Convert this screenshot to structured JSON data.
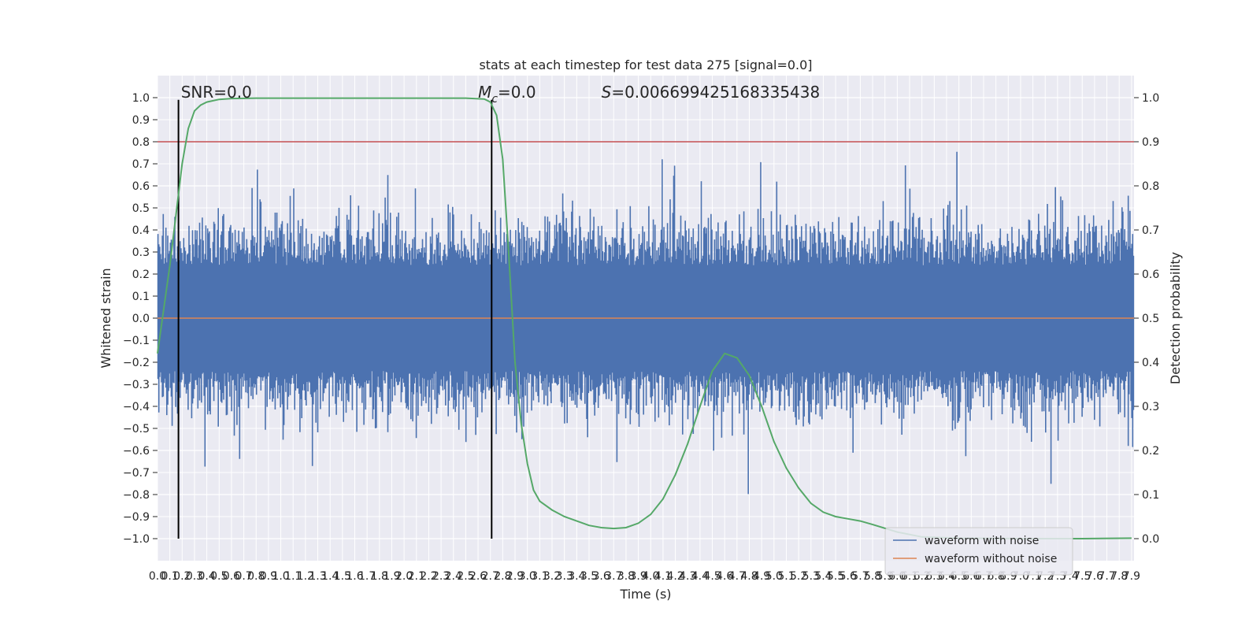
{
  "chart_data": {
    "type": "line",
    "title": "stats at each timestep for test data 275 [signal=0.0]",
    "xlabel": "Time (s)",
    "ylabel": "Whitened strain",
    "y2label": "Detection probability",
    "xlim": [
      0.0,
      7.92
    ],
    "ylim": [
      -1.1,
      1.1
    ],
    "y2lim": [
      -0.05,
      1.05
    ],
    "grid": true,
    "x_ticks": [
      "0.0",
      "0.1",
      "0.2",
      "0.3",
      "0.4",
      "0.5",
      "0.6",
      "0.7",
      "0.8",
      "0.9",
      "1.0",
      "1.1",
      "1.2",
      "1.3",
      "1.4",
      "1.5",
      "1.6",
      "1.7",
      "1.8",
      "1.9",
      "2.0",
      "2.1",
      "2.2",
      "2.3",
      "2.4",
      "2.5",
      "2.6",
      "2.7",
      "2.8",
      "2.9",
      "3.0",
      "3.1",
      "3.2",
      "3.3",
      "3.4",
      "3.5",
      "3.6",
      "3.7",
      "3.8",
      "3.9",
      "4.0",
      "4.1",
      "4.2",
      "4.3",
      "4.4",
      "4.5",
      "4.6",
      "4.7",
      "4.8",
      "4.9",
      "5.0",
      "5.1",
      "5.2",
      "5.3",
      "5.4",
      "5.5",
      "5.6",
      "5.7",
      "5.8",
      "5.9",
      "6.0",
      "6.1",
      "6.2",
      "6.3",
      "6.4",
      "6.5",
      "6.6",
      "6.7",
      "6.8",
      "6.9",
      "7.0",
      "7.1",
      "7.2",
      "7.3",
      "7.4",
      "7.5",
      "7.6",
      "7.7",
      "7.8",
      "7.9"
    ],
    "y_ticks": [
      "1.0",
      "0.9",
      "0.8",
      "0.7",
      "0.6",
      "0.5",
      "0.4",
      "0.3",
      "0.2",
      "0.1",
      "0.0",
      "−0.1",
      "−0.2",
      "−0.3",
      "−0.4",
      "−0.5",
      "−0.6",
      "−0.7",
      "−0.8",
      "−0.9",
      "−1.0"
    ],
    "y2_ticks": [
      "1.0",
      "0.9",
      "0.8",
      "0.7",
      "0.6",
      "0.5",
      "0.4",
      "0.3",
      "0.2",
      "0.1",
      "0.0"
    ],
    "series": [
      {
        "name": "waveform with noise",
        "color": "#4c72b0",
        "kind": "noise",
        "amplitude_typical": 0.5,
        "amplitude_peak": 0.99
      },
      {
        "name": "waveform without noise",
        "color": "#dd8452",
        "values_constant": 0.0
      },
      {
        "name": "",
        "color": "#55a868",
        "axis": "y2",
        "x": [
          0.0,
          0.1,
          0.2,
          0.25,
          0.3,
          0.35,
          0.4,
          0.5,
          0.6,
          0.8,
          1.0,
          1.5,
          2.0,
          2.5,
          2.65,
          2.7,
          2.75,
          2.8,
          2.85,
          2.9,
          2.95,
          3.0,
          3.05,
          3.1,
          3.2,
          3.3,
          3.5,
          3.6,
          3.7,
          3.8,
          3.9,
          4.0,
          4.1,
          4.2,
          4.3,
          4.4,
          4.5,
          4.6,
          4.7,
          4.8,
          4.9,
          5.0,
          5.1,
          5.2,
          5.3,
          5.4,
          5.5,
          5.6,
          5.7,
          5.8,
          6.0,
          6.2,
          6.5,
          7.0,
          7.5,
          7.9
        ],
        "values": [
          0.42,
          0.62,
          0.85,
          0.93,
          0.97,
          0.983,
          0.99,
          0.996,
          0.998,
          0.999,
          0.999,
          0.999,
          0.999,
          0.999,
          0.997,
          0.99,
          0.96,
          0.86,
          0.64,
          0.4,
          0.26,
          0.17,
          0.11,
          0.085,
          0.065,
          0.05,
          0.03,
          0.025,
          0.023,
          0.025,
          0.035,
          0.055,
          0.09,
          0.145,
          0.215,
          0.3,
          0.38,
          0.42,
          0.41,
          0.37,
          0.3,
          0.22,
          0.16,
          0.115,
          0.08,
          0.06,
          0.05,
          0.045,
          0.04,
          0.032,
          0.015,
          0.004,
          0.001,
          0.0,
          0.0,
          0.001
        ]
      }
    ],
    "hlines": [
      {
        "y2": 0.9,
        "color": "#c44e52"
      }
    ],
    "vlines": [
      {
        "x": 0.17,
        "color": "#000000"
      },
      {
        "x": 2.71,
        "color": "#000000"
      }
    ],
    "annotations": [
      {
        "text": "SNR=0.0",
        "x": 0.19
      },
      {
        "text": "M",
        "sub": "c",
        "suffix": "=0.0",
        "x": 2.6
      },
      {
        "text": "S",
        "suffix": "=0.006699425168335438",
        "x": 3.6
      }
    ],
    "legend_position": "lower-right"
  }
}
